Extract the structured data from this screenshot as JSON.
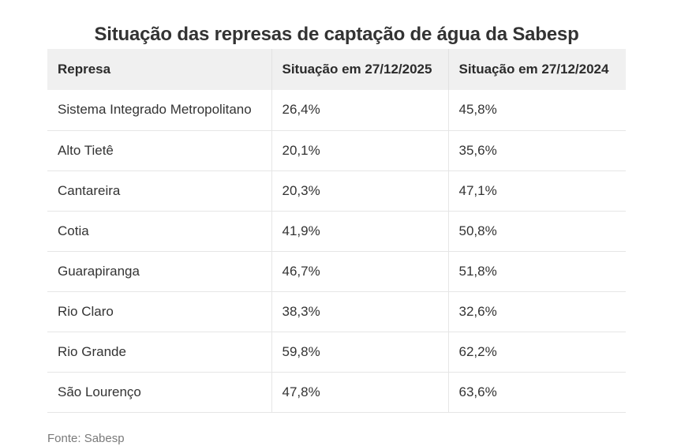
{
  "title": "Situação das represas de captação de água da Sabesp",
  "table": {
    "headers": [
      "Represa",
      "Situação em 27/12/2025",
      "Situação em 27/12/2024"
    ],
    "rows": [
      [
        "Sistema Integrado Metropolitano",
        "26,4%",
        "45,8%"
      ],
      [
        "Alto Tietê",
        "20,1%",
        "35,6%"
      ],
      [
        "Cantareira",
        "20,3%",
        "47,1%"
      ],
      [
        "Cotia",
        "41,9%",
        "50,8%"
      ],
      [
        "Guarapiranga",
        "46,7%",
        "51,8%"
      ],
      [
        "Rio Claro",
        "38,3%",
        "32,6%"
      ],
      [
        "Rio Grande",
        "59,8%",
        "62,2%"
      ],
      [
        "São Lourenço",
        "47,8%",
        "63,6%"
      ]
    ]
  },
  "source": "Fonte: Sabesp"
}
